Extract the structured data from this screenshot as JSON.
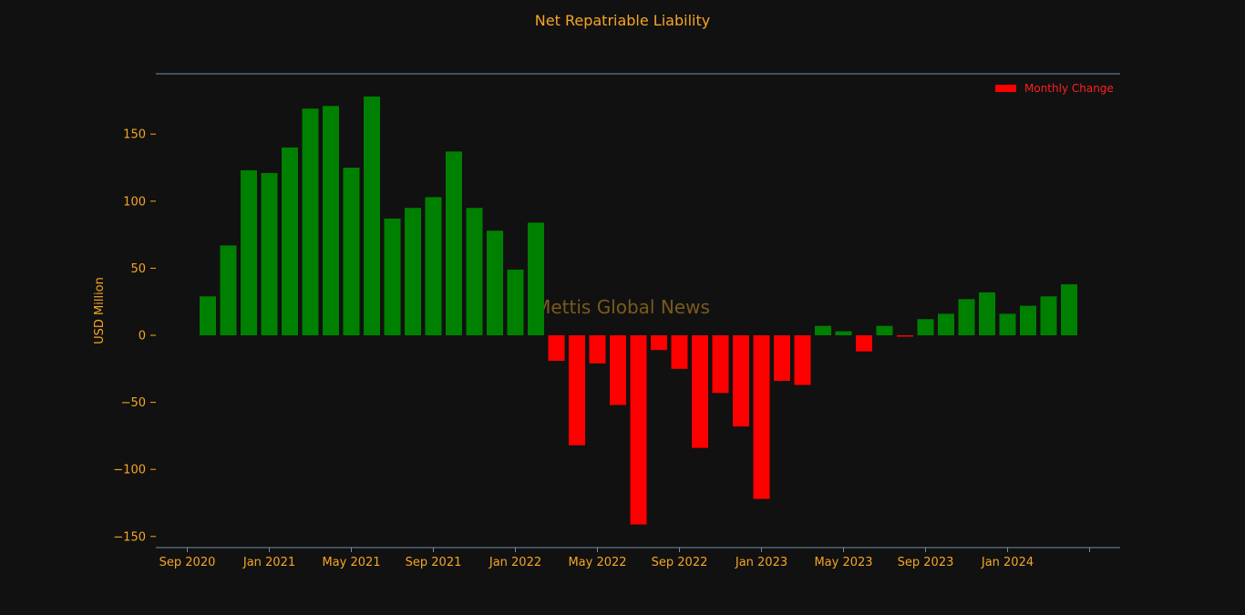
{
  "chart_data": {
    "type": "bar",
    "title": "Net Repatriable Liability",
    "ylabel": "USD Million",
    "xlabel": "",
    "ylim": [
      -158,
      195
    ],
    "yticks": [
      150,
      100,
      50,
      0,
      -50,
      -100,
      -150
    ],
    "ytick_labels": [
      "150",
      "100",
      "50",
      "0",
      "−50",
      "−100",
      "−150"
    ],
    "xticks": [
      "2020-09",
      "2021-01",
      "2021-05",
      "2021-09",
      "2022-01",
      "2022-05",
      "2022-09",
      "2023-01",
      "2023-05",
      "2023-09",
      "2024-01",
      "2024-05"
    ],
    "xtick_labels": [
      "Sep 2020",
      "Jan 2021",
      "May 2021",
      "Sep 2021",
      "Jan 2022",
      "May 2022",
      "Sep 2022",
      "Jan 2023",
      "May 2023",
      "Sep 2023",
      "Jan 2024",
      ""
    ],
    "legend": {
      "label": "Monthly Change",
      "position": "top-right"
    },
    "watermark": "Mettis Global News",
    "positive_color": "#008000",
    "negative_color": "#ff0000",
    "text_color": "#f5a623",
    "background": "#111111",
    "series": [
      {
        "name": "Monthly Change",
        "categories": [
          "2020-10",
          "2020-11",
          "2020-12",
          "2021-01",
          "2021-02",
          "2021-03",
          "2021-04",
          "2021-05",
          "2021-06",
          "2021-07",
          "2021-08",
          "2021-09",
          "2021-10",
          "2021-11",
          "2021-12",
          "2022-01",
          "2022-02",
          "2022-03",
          "2022-04",
          "2022-05",
          "2022-06",
          "2022-07",
          "2022-08",
          "2022-09",
          "2022-10",
          "2022-11",
          "2022-12",
          "2023-01",
          "2023-02",
          "2023-03",
          "2023-04",
          "2023-05",
          "2023-06",
          "2023-07",
          "2023-08",
          "2023-09",
          "2023-10",
          "2023-11",
          "2023-12",
          "2024-01",
          "2024-02",
          "2024-03",
          "2024-04"
        ],
        "values": [
          29,
          67,
          123,
          121,
          140,
          169,
          171,
          125,
          178,
          87,
          95,
          103,
          137,
          95,
          78,
          49,
          84,
          -19,
          -82,
          -21,
          -52,
          -141,
          -11,
          -25,
          -84,
          -43,
          -68,
          -122,
          -34,
          -37,
          7,
          3,
          -12,
          7,
          -1,
          12,
          16,
          27,
          32,
          16,
          22,
          29,
          38
        ]
      }
    ]
  }
}
